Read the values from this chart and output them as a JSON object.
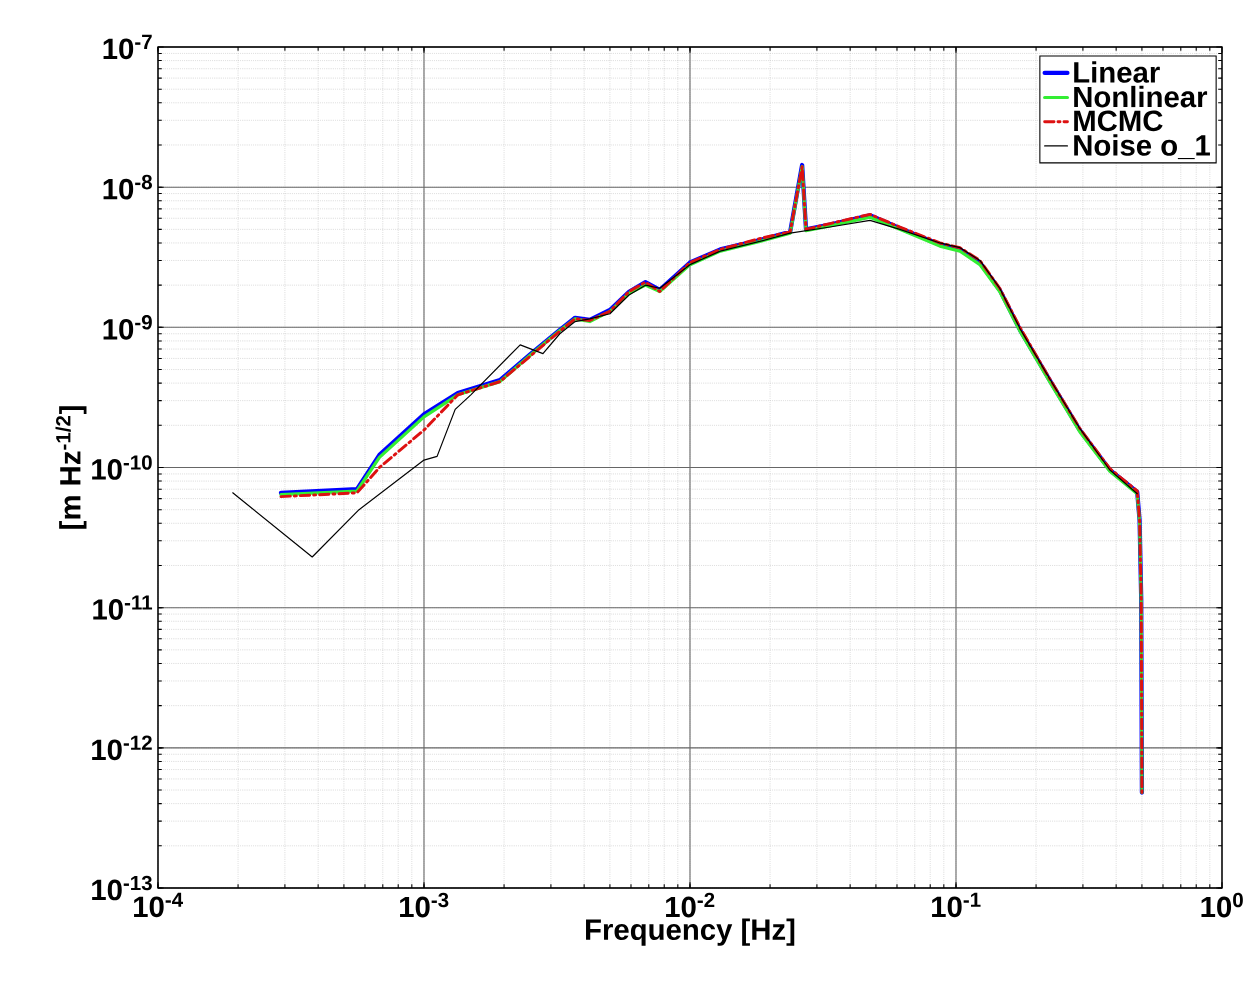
{
  "chart_data": {
    "type": "line",
    "xlabel": "Frequency  [Hz]",
    "ylabel": "[m Hz$^{-1/2}$]",
    "log": "xy",
    "grid": true,
    "legend": "top right",
    "xlim": [
      0.0001,
      1
    ],
    "ylim": [
      1e-13,
      1e-07
    ],
    "xticks": [
      {
        "value": 0.0001,
        "label": "10$^{-4}$"
      },
      {
        "value": 0.001,
        "label": "10$^{-3}$"
      },
      {
        "value": 0.01,
        "label": "10$^{-2}$"
      },
      {
        "value": 0.1,
        "label": "10$^{-1}$"
      },
      {
        "value": 1,
        "label": "10$^{0}$"
      }
    ],
    "yticks": [
      {
        "value": 1e-13,
        "label": "10$^{-13}$"
      },
      {
        "value": 1e-12,
        "label": "10$^{-12}$"
      },
      {
        "value": 1e-11,
        "label": "10$^{-11}$"
      },
      {
        "value": 1e-10,
        "label": "10$^{-10}$"
      },
      {
        "value": 1e-09,
        "label": "10$^{-9}$"
      },
      {
        "value": 1e-08,
        "label": "10$^{-8}$"
      },
      {
        "value": 1e-07,
        "label": "10$^{-7}$"
      }
    ],
    "series": [
      {
        "name": "Linear",
        "color": "#0000ff",
        "line_style": "solid",
        "x": [
          0.00029,
          0.00056,
          0.00068,
          0.001,
          0.00134,
          0.00193,
          0.0025,
          0.00324,
          0.0037,
          0.0042,
          0.005,
          0.0059,
          0.0068,
          0.0077,
          0.01,
          0.013,
          0.0183,
          0.0238,
          0.0264,
          0.0273,
          0.0336,
          0.0475,
          0.0615,
          0.087,
          0.1035,
          0.123,
          0.146,
          0.174,
          0.225,
          0.292,
          0.379,
          0.48,
          0.49,
          0.497,
          0.5
        ],
        "values": [
          6.6e-11,
          7e-11,
          1.23e-10,
          2.4e-10,
          3.4e-10,
          4.2e-10,
          6.4e-10,
          9.6e-10,
          1.17e-09,
          1.13e-09,
          1.33e-09,
          1.79e-09,
          2.1e-09,
          1.85e-09,
          2.9e-09,
          3.6e-09,
          4.2e-09,
          4.8e-09,
          1.44e-08,
          5e-09,
          5.4e-09,
          6.3e-09,
          5.1e-09,
          3.9e-09,
          3.6e-09,
          2.9e-09,
          1.85e-09,
          9.6e-10,
          4.2e-10,
          1.85e-10,
          9.6e-11,
          6.7e-11,
          4.2e-11,
          1.14e-11,
          4.8e-13
        ]
      },
      {
        "name": "Nonlinear",
        "color": "#33ee33",
        "line_style": "solid",
        "x": [
          0.00029,
          0.00056,
          0.00068,
          0.001,
          0.00134,
          0.00193,
          0.0025,
          0.00324,
          0.0037,
          0.0042,
          0.005,
          0.0059,
          0.0068,
          0.0077,
          0.01,
          0.013,
          0.0183,
          0.0238,
          0.0264,
          0.0273,
          0.0336,
          0.0475,
          0.0615,
          0.087,
          0.1035,
          0.123,
          0.146,
          0.174,
          0.225,
          0.292,
          0.379,
          0.48,
          0.49,
          0.497,
          0.5
        ],
        "values": [
          6.4e-11,
          6.8e-11,
          1.18e-10,
          2.3e-10,
          3.3e-10,
          4.1e-10,
          6.3e-10,
          9.5e-10,
          1.15e-09,
          1.1e-09,
          1.3e-09,
          1.75e-09,
          2e-09,
          1.8e-09,
          2.8e-09,
          3.5e-09,
          4.1e-09,
          4.7e-09,
          1.4e-08,
          4.9e-09,
          5.3e-09,
          6.1e-09,
          5e-09,
          3.8e-09,
          3.5e-09,
          2.8e-09,
          1.8e-09,
          9.4e-10,
          4.1e-10,
          1.8e-10,
          9.4e-11,
          6.5e-11,
          4.1e-11,
          1.1e-11,
          4.8e-13
        ]
      },
      {
        "name": "MCMC",
        "color": "#dd1111",
        "line_style": "dashed",
        "x": [
          0.00029,
          0.00056,
          0.00068,
          0.001,
          0.00134,
          0.00193,
          0.0025,
          0.00324,
          0.0037,
          0.0042,
          0.005,
          0.0059,
          0.0068,
          0.0077,
          0.01,
          0.013,
          0.0183,
          0.0238,
          0.0264,
          0.0273,
          0.0336,
          0.0475,
          0.0615,
          0.087,
          0.1035,
          0.123,
          0.146,
          0.174,
          0.225,
          0.292,
          0.379,
          0.48,
          0.49,
          0.497,
          0.5
        ],
        "values": [
          6.2e-11,
          6.6e-11,
          1e-10,
          1.85e-10,
          3.3e-10,
          4.1e-10,
          6.2e-10,
          9.4e-10,
          1.15e-09,
          1.12e-09,
          1.3e-09,
          1.8e-09,
          2.1e-09,
          1.8e-09,
          2.9e-09,
          3.6e-09,
          4.3e-09,
          4.8e-09,
          1.4e-08,
          5e-09,
          5.5e-09,
          6.4e-09,
          5.2e-09,
          4e-09,
          3.7e-09,
          3e-09,
          1.9e-09,
          1e-09,
          4.3e-10,
          1.9e-10,
          9.8e-11,
          6.8e-11,
          4.2e-11,
          1.14e-11,
          4.8e-13
        ]
      },
      {
        "name": "Noise o_1",
        "color": "#000000",
        "line_style": "solid",
        "x": [
          0.000191,
          0.00038,
          0.00057,
          0.001,
          0.00112,
          0.00131,
          0.0015,
          0.0023,
          0.0028,
          0.00324,
          0.0037,
          0.0042,
          0.005,
          0.0059,
          0.0068,
          0.0077,
          0.01,
          0.013,
          0.0183,
          0.0238,
          0.0336,
          0.0475,
          0.0615,
          0.087,
          0.1035,
          0.123,
          0.146,
          0.174,
          0.225,
          0.292,
          0.379,
          0.48
        ],
        "values": [
          6.6e-11,
          2.3e-11,
          5e-11,
          1.13e-10,
          1.2e-10,
          2.6e-10,
          3.3e-10,
          7.5e-10,
          6.5e-10,
          9e-10,
          1.1e-09,
          1.15e-09,
          1.25e-09,
          1.7e-09,
          2e-09,
          1.9e-09,
          2.8e-09,
          3.5e-09,
          4.1e-09,
          4.7e-09,
          5.2e-09,
          5.8e-09,
          5e-09,
          4e-09,
          3.7e-09,
          3e-09,
          1.9e-09,
          9.8e-10,
          4.3e-10,
          1.9e-10,
          9.6e-11,
          6.5e-11
        ]
      }
    ]
  }
}
